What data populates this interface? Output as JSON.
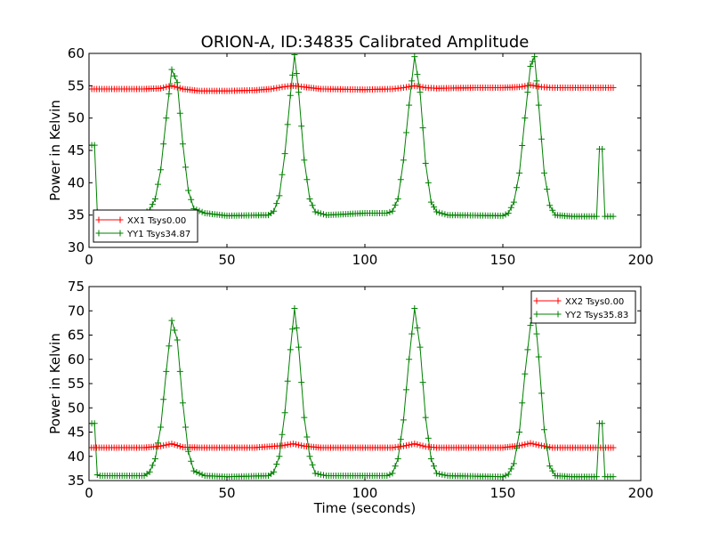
{
  "title": "ORION-A, ID:34835 Calibrated Amplitude",
  "colors": {
    "xx": "#ff0000",
    "yy": "#008000"
  },
  "chart_data": [
    {
      "type": "line",
      "xlabel": "",
      "ylabel": "Power in Kelvin",
      "xlim": [
        0,
        200
      ],
      "ylim": [
        30,
        60
      ],
      "xticks": [
        0,
        50,
        100,
        150,
        200
      ],
      "yticks": [
        30,
        35,
        40,
        45,
        50,
        55,
        60
      ],
      "legend_position": "lower-left",
      "marker": "+",
      "series": [
        {
          "name": "XX1 Tsys0.00",
          "color": "#ff0000",
          "x": [
            0,
            1,
            20,
            26,
            30,
            34,
            40,
            50,
            60,
            66,
            70,
            74,
            78,
            84,
            100,
            110,
            114,
            118,
            122,
            126,
            140,
            150,
            156,
            160,
            164,
            168,
            180,
            190
          ],
          "y": [
            54.5,
            54.5,
            54.5,
            54.6,
            55.0,
            54.5,
            54.2,
            54.2,
            54.3,
            54.5,
            54.8,
            55.0,
            54.8,
            54.5,
            54.4,
            54.5,
            54.7,
            55.0,
            54.7,
            54.6,
            54.7,
            54.7,
            54.8,
            55.1,
            54.8,
            54.7,
            54.7,
            54.7
          ]
        },
        {
          "name": "YY1 Tsys34.87",
          "color": "#008000",
          "x": [
            0,
            2,
            3,
            4,
            20,
            22,
            24,
            26,
            28,
            30,
            32,
            34,
            36,
            38,
            42,
            50,
            65,
            67,
            69,
            71,
            73,
            74.5,
            76,
            78,
            80,
            82,
            86,
            100,
            108,
            110,
            112,
            114,
            116,
            118,
            120,
            122,
            124,
            126,
            130,
            150,
            152,
            154,
            156,
            158,
            160,
            161.5,
            163,
            165,
            167,
            169,
            175,
            184,
            185,
            186,
            187,
            188,
            189,
            190
          ],
          "y": [
            45.8,
            45.8,
            35.5,
            35.3,
            35.3,
            35.8,
            37.5,
            42.0,
            50.0,
            57.5,
            55.5,
            46.0,
            38.8,
            36.0,
            35.3,
            34.9,
            35.0,
            35.6,
            38.0,
            44.5,
            53.5,
            59.8,
            54.0,
            43.5,
            37.5,
            35.5,
            35.0,
            35.3,
            35.3,
            35.6,
            37.5,
            43.5,
            52.0,
            59.5,
            54.0,
            43.0,
            37.0,
            35.5,
            35.0,
            34.9,
            35.3,
            37.0,
            41.5,
            50.0,
            58.0,
            59.5,
            52.0,
            41.5,
            36.5,
            35.0,
            34.8,
            34.8,
            45.2,
            45.2,
            34.8,
            34.8,
            34.8,
            34.8
          ]
        }
      ]
    },
    {
      "type": "line",
      "xlabel": "Time (seconds)",
      "ylabel": "Power in Kelvin",
      "xlim": [
        0,
        200
      ],
      "ylim": [
        35,
        75
      ],
      "xticks": [
        0,
        50,
        100,
        150,
        200
      ],
      "yticks": [
        35,
        40,
        45,
        50,
        55,
        60,
        65,
        70,
        75
      ],
      "legend_position": "upper-right",
      "marker": "+",
      "series": [
        {
          "name": "XX2 Tsys0.00",
          "color": "#ff0000",
          "x": [
            0,
            20,
            26,
            30,
            34,
            40,
            60,
            70,
            74,
            78,
            84,
            110,
            114,
            118,
            122,
            126,
            150,
            156,
            160,
            164,
            168,
            190
          ],
          "y": [
            41.8,
            41.8,
            42.1,
            42.6,
            41.9,
            41.8,
            41.8,
            42.2,
            42.6,
            42.1,
            41.8,
            41.8,
            42.1,
            42.6,
            42.0,
            41.8,
            41.8,
            42.2,
            42.7,
            42.2,
            41.8,
            41.8
          ]
        },
        {
          "name": "YY2 Tsys35.83",
          "color": "#008000",
          "x": [
            0,
            2,
            3,
            4,
            20,
            22,
            24,
            26,
            28,
            30,
            32,
            34,
            36,
            38,
            42,
            50,
            65,
            67,
            69,
            71,
            73,
            74.5,
            76,
            78,
            80,
            82,
            86,
            100,
            108,
            110,
            112,
            114,
            116,
            118,
            120,
            122,
            124,
            126,
            130,
            150,
            152,
            154,
            156,
            158,
            160,
            161.5,
            163,
            165,
            167,
            169,
            175,
            184,
            185,
            186,
            187,
            188,
            189,
            190
          ],
          "y": [
            46.8,
            46.8,
            36.2,
            36.0,
            36.0,
            36.8,
            39.5,
            46.0,
            57.5,
            68.0,
            64.0,
            51.0,
            41.0,
            37.0,
            36.0,
            35.8,
            36.0,
            36.8,
            40.0,
            49.0,
            62.0,
            70.5,
            62.5,
            48.0,
            40.0,
            36.5,
            36.0,
            36.0,
            36.0,
            36.5,
            39.5,
            47.5,
            60.0,
            70.5,
            62.5,
            48.0,
            39.5,
            36.5,
            36.0,
            35.8,
            36.3,
            38.5,
            45.0,
            57.0,
            67.0,
            70.0,
            60.5,
            45.5,
            38.0,
            36.0,
            35.8,
            35.8,
            46.8,
            46.8,
            35.8,
            35.8,
            35.8,
            35.8
          ]
        }
      ]
    }
  ]
}
